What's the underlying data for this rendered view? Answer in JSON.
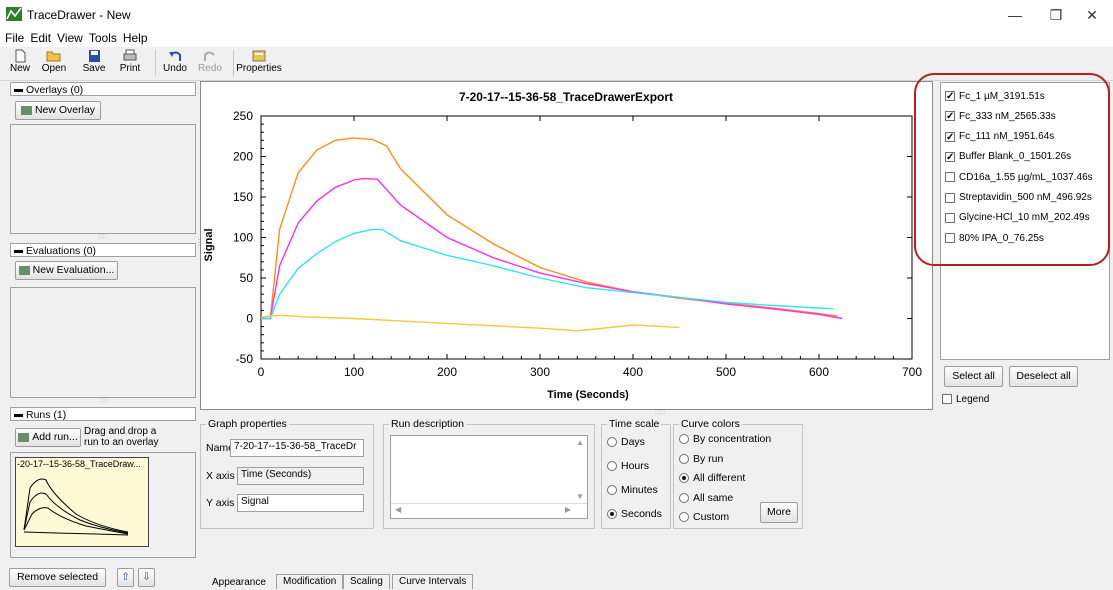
{
  "window": {
    "title": "TraceDrawer - New",
    "minimize_glyph": "—",
    "restore_glyph": "❐",
    "close_glyph": "✕"
  },
  "menu": [
    "File",
    "Edit",
    "View",
    "Tools",
    "Help"
  ],
  "toolbar": {
    "new": "New",
    "open": "Open",
    "save": "Save",
    "print": "Print",
    "undo": "Undo",
    "redo": "Redo",
    "properties": "Properties"
  },
  "left": {
    "overlays_header": "Overlays (0)",
    "new_overlay": "New Overlay",
    "evaluations_header": "Evaluations (0)",
    "new_evaluation": "New Evaluation...",
    "runs_header": "Runs (1)",
    "add_run": "Add run...",
    "drag_hint_1": "Drag and drop a",
    "drag_hint_2": "run to an overlay",
    "thumb_title": "-20-17--15-36-58_TraceDraw...",
    "remove_selected": "Remove selected"
  },
  "chart_data": {
    "type": "line",
    "title": "7-20-17--15-36-58_TraceDrawerExport",
    "xlabel": "Time (Seconds)",
    "ylabel": "Signal",
    "xlim": [
      0,
      700
    ],
    "ylim": [
      -50,
      250
    ],
    "xticks": [
      "0",
      "100",
      "200",
      "300",
      "400",
      "500",
      "600",
      "700"
    ],
    "yticks": [
      "-50",
      "0",
      "50",
      "100",
      "150",
      "200",
      "250"
    ],
    "series": [
      {
        "color": "#ff8c1a",
        "x": [
          0,
          10,
          20,
          40,
          60,
          80,
          100,
          120,
          135,
          150,
          200,
          250,
          300,
          350,
          400,
          450,
          500,
          550,
          600,
          620
        ],
        "y": [
          0,
          0,
          110,
          180,
          208,
          220,
          223,
          221,
          213,
          185,
          128,
          92,
          63,
          45,
          33,
          25,
          19,
          13,
          6,
          3
        ]
      },
      {
        "color": "#ff2df0",
        "x": [
          0,
          10,
          20,
          40,
          60,
          80,
          100,
          110,
          125,
          150,
          200,
          250,
          300,
          350,
          400,
          450,
          500,
          550,
          600,
          625
        ],
        "y": [
          0,
          0,
          65,
          118,
          145,
          162,
          171,
          173,
          172,
          140,
          100,
          75,
          56,
          43,
          33,
          26,
          18,
          12,
          5,
          0
        ]
      },
      {
        "color": "#33e3f0",
        "x": [
          0,
          10,
          20,
          40,
          60,
          80,
          100,
          120,
          130,
          150,
          200,
          250,
          300,
          350,
          400,
          450,
          500,
          550,
          600,
          615
        ],
        "y": [
          0,
          0,
          30,
          62,
          80,
          95,
          105,
          110,
          110,
          96,
          78,
          65,
          50,
          38,
          32,
          26,
          20,
          16,
          13,
          12
        ]
      },
      {
        "color": "#f7c83a",
        "x": [
          0,
          20,
          50,
          100,
          150,
          200,
          250,
          300,
          340,
          360,
          400,
          450
        ],
        "y": [
          2,
          4,
          2,
          0,
          -3,
          -6,
          -9,
          -12,
          -15,
          -13,
          -8,
          -11
        ]
      }
    ]
  },
  "legend_list": [
    {
      "label": "Fc_1 µM_3191.51s",
      "checked": true
    },
    {
      "label": "Fc_333 nM_2565.33s",
      "checked": true
    },
    {
      "label": "Fc_111 nM_1951.64s",
      "checked": true
    },
    {
      "label": "Buffer Blank_0_1501.26s",
      "checked": true
    },
    {
      "label": "CD16a_1.55 µg/mL_1037.46s",
      "checked": false
    },
    {
      "label": "Streptavidin_500 nM_496.92s",
      "checked": false
    },
    {
      "label": "Glycine-HCl_10 mM_202.49s",
      "checked": false
    },
    {
      "label": "80% IPA_0_76.25s",
      "checked": false
    }
  ],
  "right": {
    "select_all": "Select all",
    "deselect_all": "Deselect all",
    "legend": "Legend"
  },
  "graph_props": {
    "legend": "Graph properties",
    "name_label": "Name",
    "name_value": "7-20-17--15-36-58_TraceDr",
    "xaxis_label": "X axis",
    "xaxis_value": "Time (Seconds)",
    "yaxis_label": "Y axis",
    "yaxis_value": "Signal"
  },
  "run_description": {
    "legend": "Run description"
  },
  "time_scale": {
    "legend": "Time scale",
    "options": [
      "Days",
      "Hours",
      "Minutes",
      "Seconds"
    ],
    "selected": 3
  },
  "curve_colors": {
    "legend": "Curve colors",
    "options": [
      "By concentration",
      "By run",
      "All different",
      "All same",
      "Custom"
    ],
    "selected": 2,
    "more": "More"
  },
  "tabs": [
    "Appearance",
    "Modification",
    "Scaling",
    "Curve Intervals"
  ]
}
